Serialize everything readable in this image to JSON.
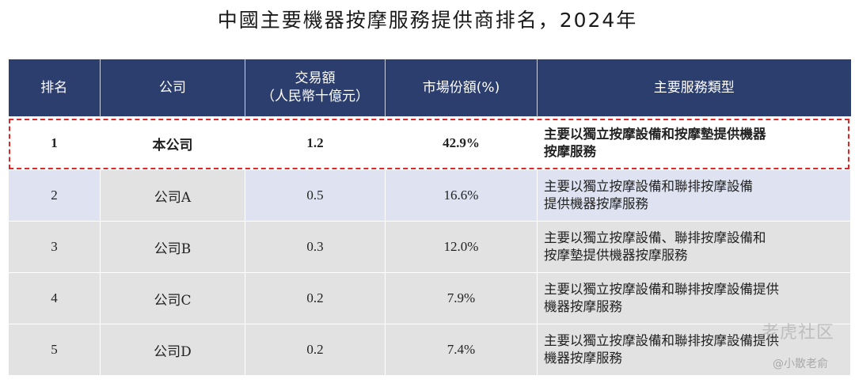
{
  "title": "中國主要機器按摩服務提供商排名，2024年",
  "headers": [
    "排名",
    "公司",
    "交易額",
    "（人民幣十億元）",
    "市場份額(%)",
    "主要服務類型"
  ],
  "rows": [
    {
      "rank": "1",
      "company": "本公司",
      "value": "1.2",
      "share": "42.9%",
      "desc_line1": "主要以獨立按摩設備和按摩墊提供機器",
      "desc_line2": "按摩服務"
    },
    {
      "rank": "2",
      "company": "公司A",
      "value": "0.5",
      "share": "16.6%",
      "desc_line1": "主要以獨立按摩設備和聯排按摩設備",
      "desc_line2": "提供機器按摩服務"
    },
    {
      "rank": "3",
      "company": "公司B",
      "value": "0.3",
      "share": "12.0%",
      "desc_line1": "主要以獨立按摩設備、聯排按摩設備和",
      "desc_line2": "按摩墊提供機器按摩服務"
    },
    {
      "rank": "4",
      "company": "公司C",
      "value": "0.2",
      "share": "7.9%",
      "desc_line1": "主要以獨立按摩設備和聯排按摩設備提供",
      "desc_line2": "機器按摩服務"
    },
    {
      "rank": "5",
      "company": "公司D",
      "value": "0.2",
      "share": "7.4%",
      "desc_line1": "主要以獨立按摩設備和聯排按摩設備提供",
      "desc_line2": "機器按摩服務"
    }
  ],
  "watermark": {
    "brand": "老虎社区",
    "handle": "@小散老俞"
  }
}
